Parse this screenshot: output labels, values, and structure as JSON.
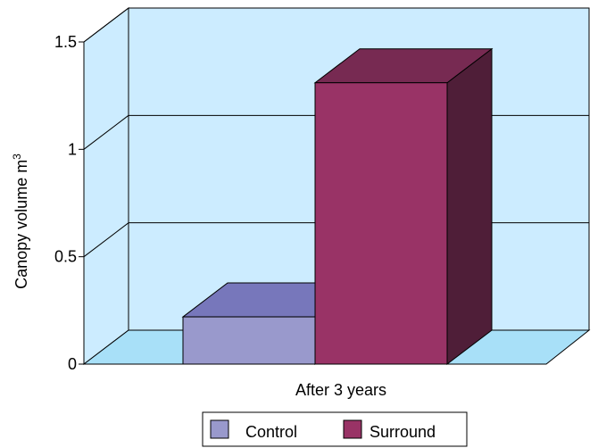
{
  "chart_data": {
    "type": "bar",
    "categories": [
      "After 3 years"
    ],
    "series": [
      {
        "name": "Control",
        "values": [
          0.22
        ],
        "color": "#9999CC",
        "top_color": "#7777BB",
        "side_color": "#6A6AA8"
      },
      {
        "name": "Surround",
        "values": [
          1.31
        ],
        "color": "#993366",
        "top_color": "#772A52",
        "side_color": "#4F1E38"
      }
    ],
    "title": "",
    "xlabel": "After 3 years",
    "ylabel": "Canopy volume m",
    "ylabel_superscript": "3",
    "ylim": [
      0,
      1.5
    ],
    "yticks": [
      0,
      0.5,
      1,
      1.5
    ],
    "ytick_labels": [
      "0",
      "0.5",
      "1",
      "1.5"
    ],
    "grid": true,
    "legend_placement": "bottom",
    "wall_color": "#CCECFF",
    "floor_color": "#A8E0F8"
  }
}
